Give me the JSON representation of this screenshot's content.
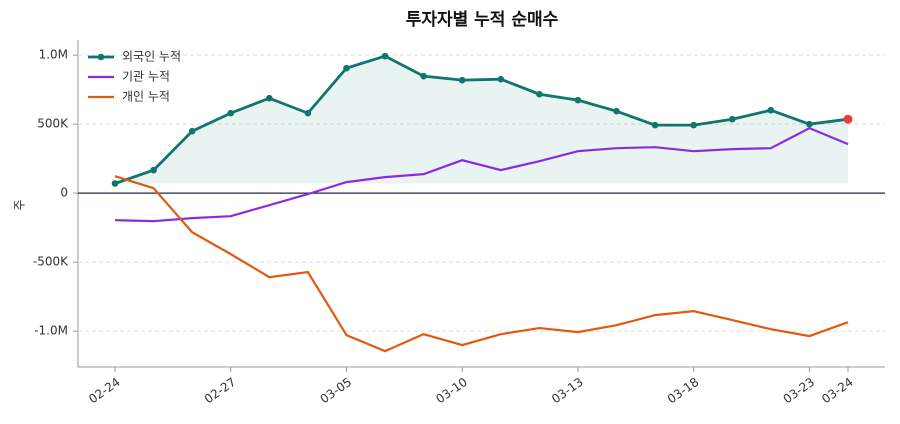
{
  "chart_data": {
    "type": "line",
    "title": "투자자별 누적 순매수",
    "y_label": "주",
    "categories": [
      "02-24",
      null,
      null,
      "02-27",
      null,
      null,
      "03-05",
      null,
      null,
      "03-10",
      null,
      null,
      "03-13",
      null,
      null,
      "03-18",
      null,
      null,
      "03-23",
      "03-24"
    ],
    "series": [
      {
        "name": "외국인 누적",
        "color": "#0f766e",
        "values": [
          70000,
          167000,
          449000,
          580000,
          688000,
          580000,
          906000,
          993000,
          848000,
          819000,
          826000,
          717000,
          674000,
          594000,
          493000,
          493000,
          536000,
          601000,
          500000,
          536000
        ]
      },
      {
        "name": "기관 누적",
        "color": "#8a2be2",
        "values": [
          -196000,
          -203000,
          -181000,
          -167000,
          -87000,
          -7000,
          80000,
          116000,
          138000,
          239000,
          167000,
          232000,
          304000,
          326000,
          333000,
          304000,
          319000,
          326000,
          471000,
          355000
        ]
      },
      {
        "name": "개인 누적",
        "color": "#e05a10",
        "values": [
          123000,
          36000,
          -283000,
          -442000,
          -609000,
          -572000,
          -1029000,
          -1145000,
          -1022000,
          -1101000,
          -1022000,
          -978000,
          -1007000,
          -957000,
          -884000,
          -855000,
          -920000,
          -986000,
          -1036000,
          -935000
        ]
      }
    ],
    "ylim": [
      -1260000,
      1110000
    ],
    "yticks": [
      {
        "value": -1000000,
        "label": "-1.0M"
      },
      {
        "value": -500000,
        "label": "-500K"
      },
      0,
      {
        "value": 500000,
        "label": "500K"
      },
      {
        "value": 1000000,
        "label": "1.0M"
      }
    ],
    "grid": true,
    "legend": "upper left"
  }
}
